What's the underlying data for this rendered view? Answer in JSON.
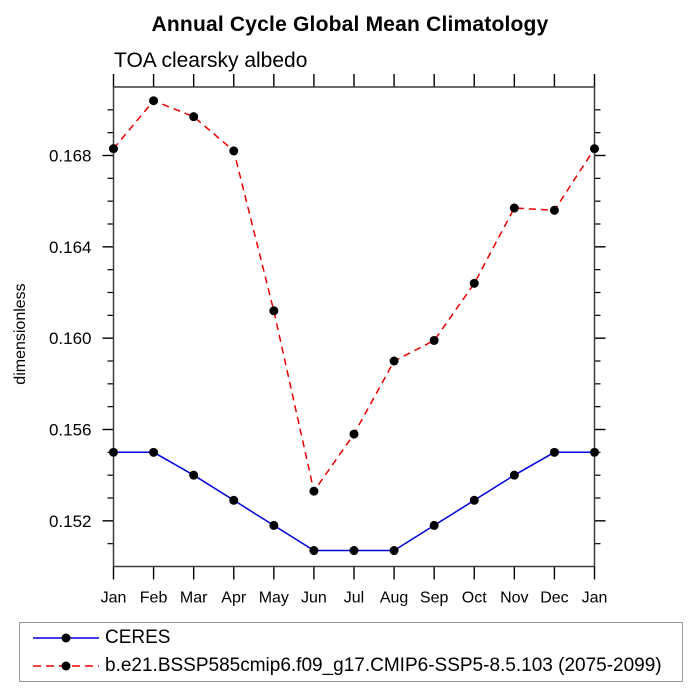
{
  "chart_data": {
    "type": "line",
    "title": "Annual Cycle Global Mean Climatology",
    "subtitle": "TOA clearsky albedo",
    "xlabel": "",
    "ylabel": "dimensionless",
    "categories": [
      "Jan",
      "Feb",
      "Mar",
      "Apr",
      "May",
      "Jun",
      "Jul",
      "Aug",
      "Sep",
      "Oct",
      "Nov",
      "Dec",
      "Jan"
    ],
    "series": [
      {
        "name": "CERES",
        "color": "#0000dd",
        "line_style": "solid",
        "marker": "filled-circle",
        "marker_color": "#000000",
        "values": [
          0.155,
          0.155,
          0.154,
          0.1529,
          0.1518,
          0.1507,
          0.1507,
          0.1507,
          0.1518,
          0.1529,
          0.154,
          0.155,
          0.155
        ]
      },
      {
        "name": "b.e21.BSSP585cmip6.f09_g17.CMIP6-SSP5-8.5.103 (2075-2099)",
        "color": "#ee0000",
        "line_style": "dashed",
        "marker": "filled-circle",
        "marker_color": "#000000",
        "values": [
          0.1683,
          0.1704,
          0.1697,
          0.1682,
          0.1612,
          0.1533,
          0.1558,
          0.159,
          0.1599,
          0.1624,
          0.1657,
          0.1656,
          0.1683
        ]
      }
    ],
    "ylim": [
      0.15,
      0.171
    ],
    "yticks": [
      0.152,
      0.156,
      0.16,
      0.164,
      0.168
    ],
    "ytick_labels": [
      "0.152",
      "0.156",
      "0.160",
      "0.164",
      "0.168"
    ],
    "yminor_interval": 0.001,
    "grid": false,
    "legend_position": "bottom-left-box"
  }
}
